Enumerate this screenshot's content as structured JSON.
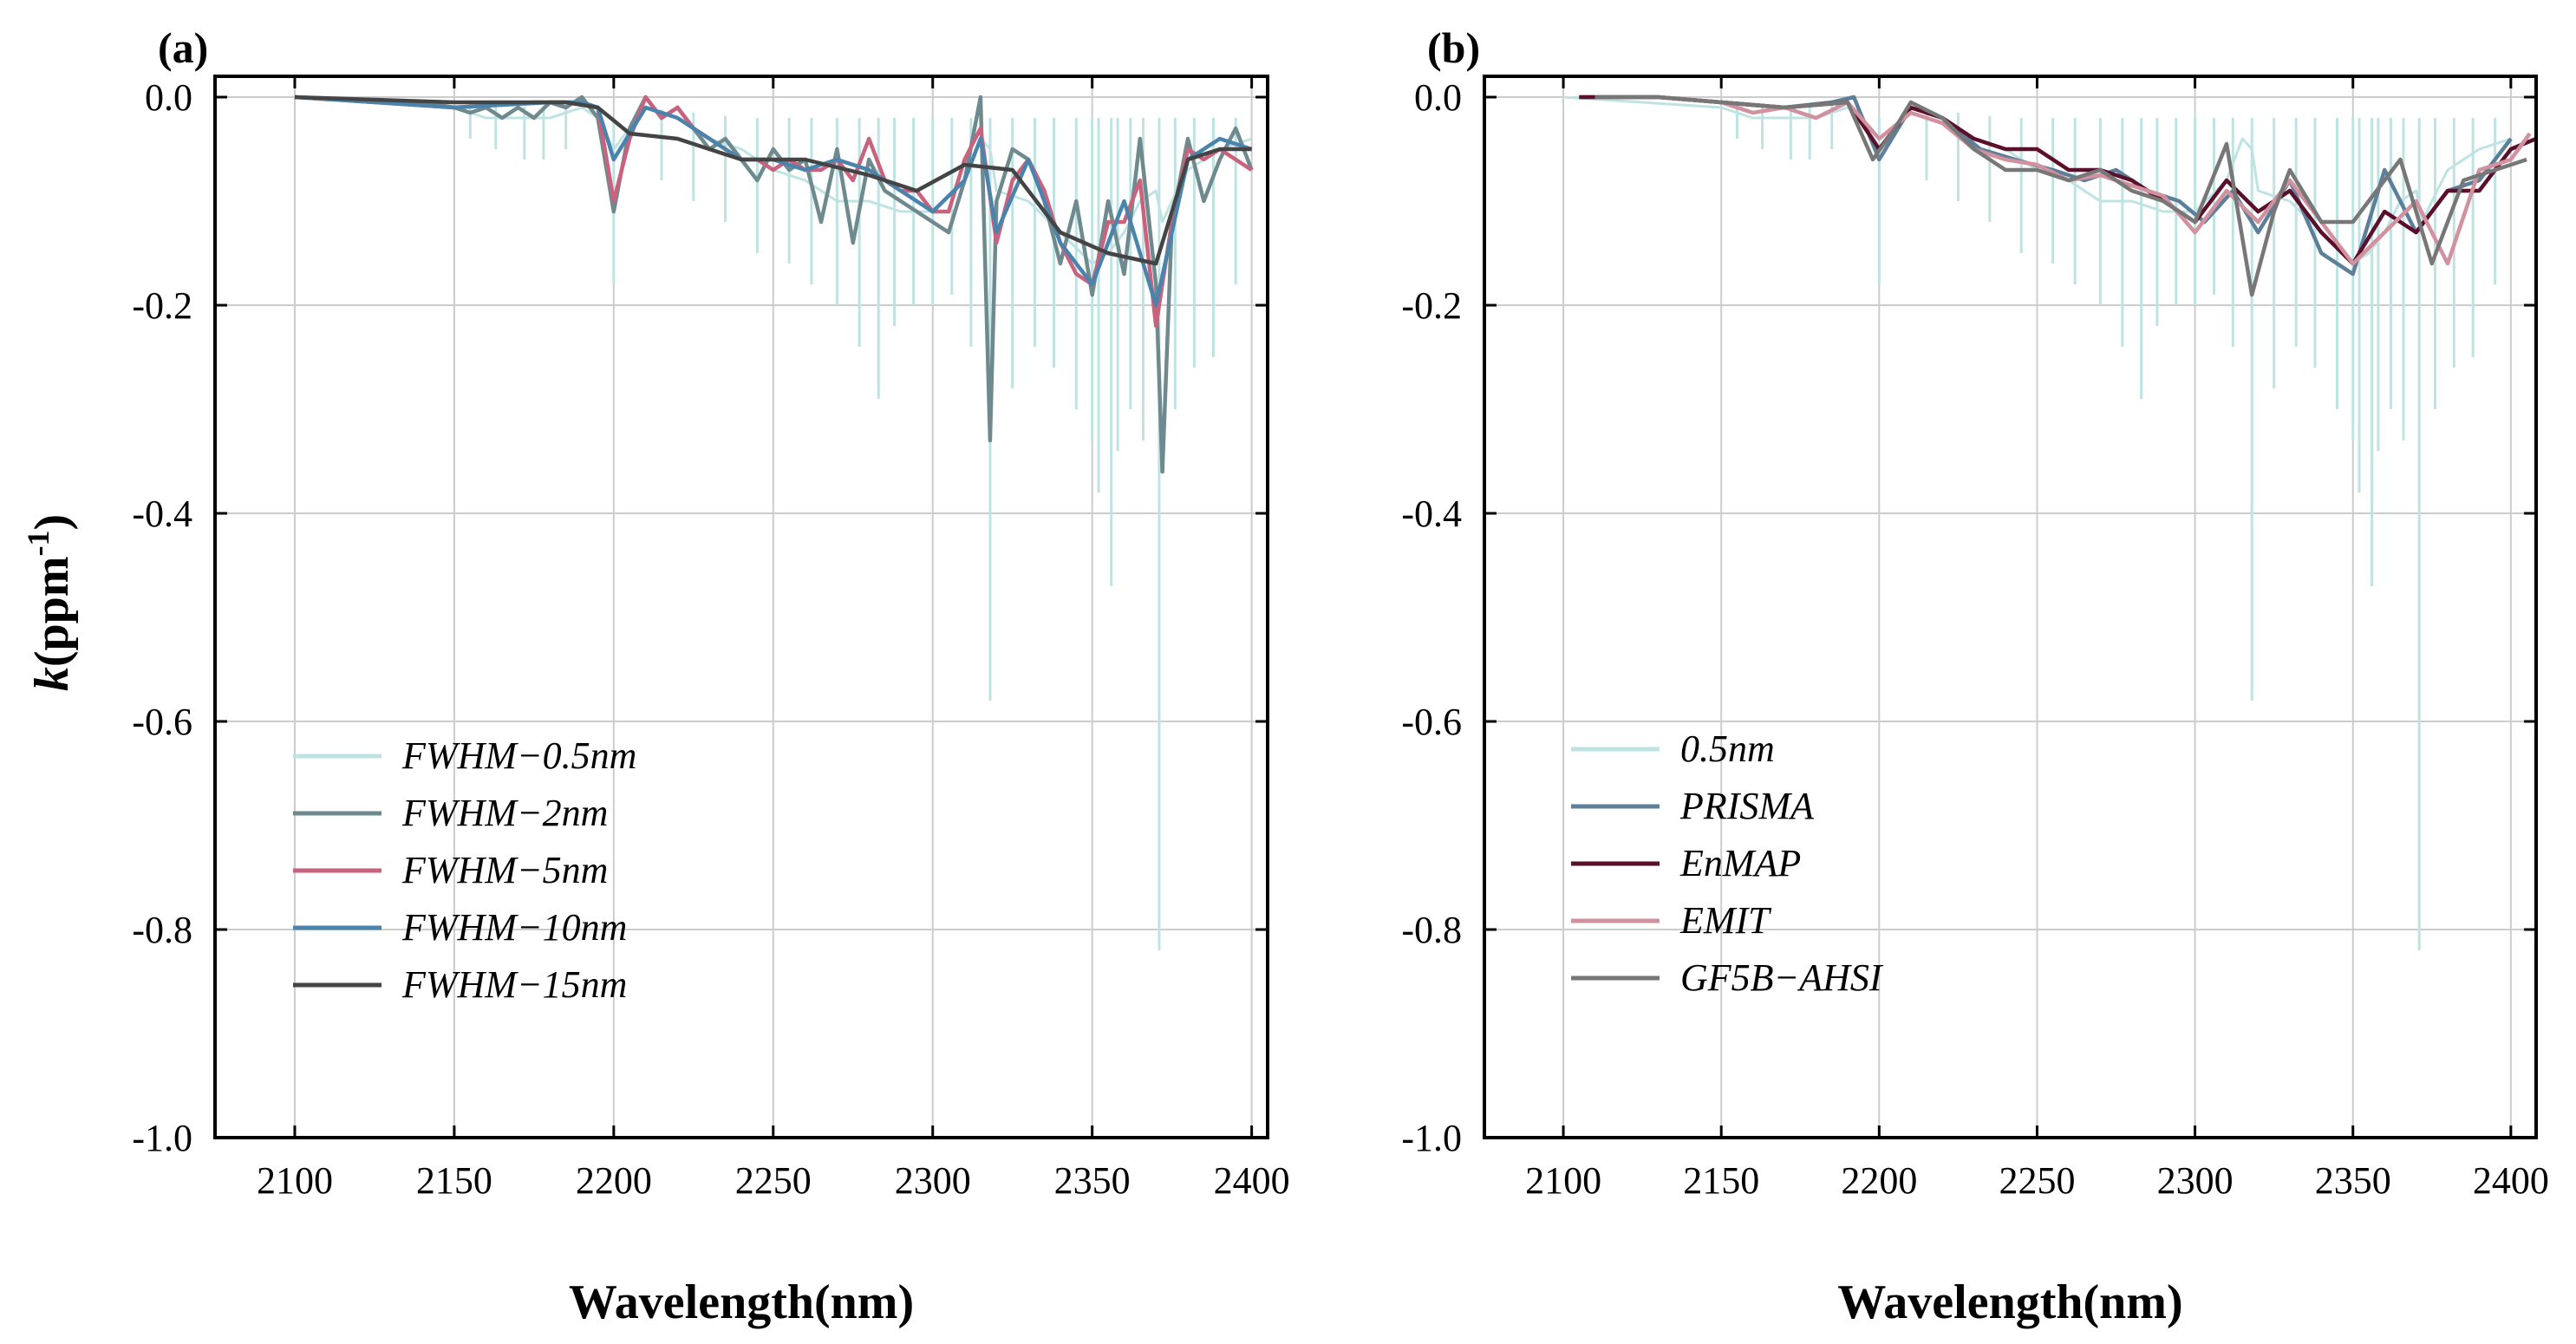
{
  "figure": {
    "ylabel_main": "k",
    "ylabel_unit": "(ppm",
    "ylabel_sup": "-1",
    "ylabel_close": ")"
  },
  "chart_data": [
    {
      "type": "line",
      "panel": "(a)",
      "xlabel": "Wavelength(nm)",
      "ylabel": "k(ppm-1)",
      "xlim": [
        2075,
        2405
      ],
      "ylim": [
        -1.0,
        0.02
      ],
      "xticks": [
        2100,
        2150,
        2200,
        2250,
        2300,
        2350,
        2400
      ],
      "yticks": [
        0.0,
        -0.2,
        -0.4,
        -0.6,
        -0.8,
        -1.0
      ],
      "ytick_labels": [
        "0.0",
        "-0.2",
        "-0.4",
        "-0.6",
        "-0.8",
        "-1.0"
      ],
      "grid": true,
      "legend_position": "lower-left",
      "legend": [
        "FWHM−0.5nm",
        "FWHM−2nm",
        "FWHM−5nm",
        "FWHM−10nm",
        "FWHM−15nm"
      ],
      "series": [
        {
          "name": "FWHM−0.5nm",
          "color": "#bfe3e3",
          "style": "spiky",
          "x": [
            2100,
            2150,
            2160,
            2170,
            2180,
            2190,
            2195,
            2200,
            2205,
            2210,
            2220,
            2230,
            2240,
            2250,
            2260,
            2270,
            2280,
            2290,
            2300,
            2310,
            2315,
            2318,
            2320,
            2330,
            2340,
            2350,
            2355,
            2360,
            2365,
            2370,
            2372,
            2375,
            2380,
            2390,
            2400
          ],
          "y": [
            0.0,
            -0.01,
            -0.02,
            -0.02,
            -0.02,
            -0.01,
            -0.02,
            -0.05,
            -0.03,
            -0.01,
            -0.02,
            -0.04,
            -0.05,
            -0.07,
            -0.08,
            -0.1,
            -0.1,
            -0.11,
            -0.11,
            -0.08,
            -0.04,
            -0.05,
            -0.09,
            -0.1,
            -0.13,
            -0.16,
            -0.15,
            -0.13,
            -0.1,
            -0.09,
            -0.12,
            -0.1,
            -0.07,
            -0.05,
            -0.04
          ],
          "spike_x": [
            2155,
            2163,
            2172,
            2178,
            2185,
            2200,
            2215,
            2225,
            2235,
            2245,
            2255,
            2262,
            2270,
            2277,
            2283,
            2288,
            2294,
            2300,
            2306,
            2312,
            2318,
            2325,
            2332,
            2338,
            2345,
            2350,
            2352,
            2356,
            2358,
            2362,
            2366,
            2371,
            2376,
            2382,
            2388,
            2395
          ],
          "spike_y": [
            -0.04,
            -0.05,
            -0.06,
            -0.06,
            -0.05,
            -0.18,
            -0.08,
            -0.1,
            -0.12,
            -0.15,
            -0.16,
            -0.18,
            -0.2,
            -0.24,
            -0.29,
            -0.22,
            -0.2,
            -0.2,
            -0.19,
            -0.24,
            -0.58,
            -0.28,
            -0.24,
            -0.26,
            -0.3,
            -0.33,
            -0.38,
            -0.47,
            -0.34,
            -0.3,
            -0.33,
            -0.82,
            -0.3,
            -0.26,
            -0.25,
            -0.18
          ]
        },
        {
          "name": "FWHM−2nm",
          "color": "#6f8a8e",
          "style": "line",
          "x": [
            2100,
            2140,
            2150,
            2155,
            2160,
            2165,
            2170,
            2175,
            2180,
            2185,
            2190,
            2195,
            2200,
            2205,
            2210,
            2215,
            2220,
            2225,
            2230,
            2235,
            2240,
            2245,
            2250,
            2255,
            2260,
            2265,
            2270,
            2275,
            2280,
            2285,
            2290,
            2295,
            2300,
            2305,
            2310,
            2315,
            2318,
            2320,
            2325,
            2330,
            2335,
            2340,
            2345,
            2350,
            2355,
            2360,
            2365,
            2370,
            2372,
            2375,
            2380,
            2385,
            2390,
            2395,
            2400
          ],
          "y": [
            0.0,
            -0.005,
            -0.01,
            -0.015,
            -0.01,
            -0.02,
            -0.01,
            -0.02,
            -0.005,
            -0.01,
            0.0,
            -0.02,
            -0.11,
            -0.03,
            0.0,
            -0.02,
            -0.01,
            -0.03,
            -0.05,
            -0.04,
            -0.06,
            -0.08,
            -0.05,
            -0.07,
            -0.06,
            -0.12,
            -0.05,
            -0.14,
            -0.06,
            -0.09,
            -0.1,
            -0.11,
            -0.12,
            -0.13,
            -0.08,
            0.0,
            -0.33,
            -0.1,
            -0.05,
            -0.06,
            -0.1,
            -0.16,
            -0.1,
            -0.19,
            -0.1,
            -0.17,
            -0.04,
            -0.18,
            -0.36,
            -0.12,
            -0.04,
            -0.1,
            -0.06,
            -0.03,
            -0.07
          ]
        },
        {
          "name": "FWHM−5nm",
          "color": "#c9627c",
          "style": "line",
          "x": [
            2100,
            2150,
            2175,
            2190,
            2195,
            2200,
            2205,
            2210,
            2215,
            2220,
            2225,
            2230,
            2235,
            2240,
            2245,
            2250,
            2255,
            2260,
            2265,
            2270,
            2275,
            2280,
            2285,
            2290,
            2295,
            2300,
            2305,
            2310,
            2315,
            2320,
            2325,
            2330,
            2335,
            2340,
            2345,
            2350,
            2355,
            2360,
            2365,
            2370,
            2375,
            2380,
            2385,
            2390,
            2395,
            2400
          ],
          "y": [
            0.0,
            -0.01,
            -0.005,
            -0.005,
            -0.01,
            -0.1,
            -0.04,
            0.0,
            -0.02,
            -0.01,
            -0.03,
            -0.04,
            -0.05,
            -0.06,
            -0.06,
            -0.07,
            -0.06,
            -0.07,
            -0.07,
            -0.06,
            -0.08,
            -0.04,
            -0.08,
            -0.09,
            -0.09,
            -0.11,
            -0.11,
            -0.06,
            -0.03,
            -0.14,
            -0.08,
            -0.06,
            -0.09,
            -0.14,
            -0.17,
            -0.18,
            -0.12,
            -0.12,
            -0.08,
            -0.22,
            -0.12,
            -0.05,
            -0.06,
            -0.05,
            -0.06,
            -0.07
          ]
        },
        {
          "name": "FWHM−10nm",
          "color": "#4a84ad",
          "style": "line",
          "x": [
            2100,
            2150,
            2180,
            2190,
            2195,
            2200,
            2210,
            2220,
            2230,
            2240,
            2250,
            2260,
            2270,
            2280,
            2290,
            2300,
            2310,
            2315,
            2320,
            2330,
            2340,
            2350,
            2360,
            2370,
            2380,
            2390,
            2400
          ],
          "y": [
            0.0,
            -0.01,
            -0.005,
            -0.005,
            -0.01,
            -0.06,
            -0.01,
            -0.02,
            -0.04,
            -0.06,
            -0.06,
            -0.07,
            -0.06,
            -0.07,
            -0.09,
            -0.11,
            -0.08,
            -0.04,
            -0.13,
            -0.06,
            -0.14,
            -0.18,
            -0.1,
            -0.2,
            -0.06,
            -0.04,
            -0.05
          ]
        },
        {
          "name": "FWHM−15nm",
          "color": "#444444",
          "style": "line",
          "x": [
            2100,
            2150,
            2185,
            2195,
            2205,
            2220,
            2240,
            2260,
            2280,
            2295,
            2310,
            2325,
            2340,
            2355,
            2370,
            2380,
            2390,
            2400
          ],
          "y": [
            0.0,
            -0.005,
            -0.005,
            -0.01,
            -0.035,
            -0.04,
            -0.06,
            -0.06,
            -0.075,
            -0.09,
            -0.065,
            -0.07,
            -0.13,
            -0.15,
            -0.16,
            -0.06,
            -0.05,
            -0.05
          ]
        }
      ]
    },
    {
      "type": "line",
      "panel": "(b)",
      "xlabel": "Wavelength(nm)",
      "ylabel": "",
      "xlim": [
        2075,
        2408
      ],
      "ylim": [
        -1.0,
        0.02
      ],
      "xticks": [
        2100,
        2150,
        2200,
        2250,
        2300,
        2350,
        2400
      ],
      "yticks": [
        0.0,
        -0.2,
        -0.4,
        -0.6,
        -0.8,
        -1.0
      ],
      "ytick_labels": [
        "0.0",
        "-0.2",
        "-0.4",
        "-0.6",
        "-0.8",
        "-1.0"
      ],
      "grid": true,
      "legend_position": "lower-left",
      "legend": [
        "0.5nm",
        "PRISMA",
        "EnMAP",
        "EMIT",
        "GF5B−AHSI"
      ],
      "series": [
        {
          "name": "0.5nm",
          "color": "#bfe3e3",
          "style": "spiky",
          "x": [
            2100,
            2150,
            2160,
            2170,
            2180,
            2190,
            2195,
            2200,
            2205,
            2210,
            2220,
            2230,
            2240,
            2250,
            2260,
            2270,
            2280,
            2290,
            2300,
            2310,
            2315,
            2318,
            2320,
            2330,
            2340,
            2350,
            2355,
            2360,
            2365,
            2370,
            2372,
            2375,
            2380,
            2390,
            2400
          ],
          "y": [
            0.0,
            -0.01,
            -0.02,
            -0.02,
            -0.02,
            -0.01,
            -0.02,
            -0.05,
            -0.03,
            -0.01,
            -0.02,
            -0.04,
            -0.05,
            -0.07,
            -0.08,
            -0.1,
            -0.1,
            -0.11,
            -0.11,
            -0.08,
            -0.04,
            -0.05,
            -0.09,
            -0.1,
            -0.13,
            -0.16,
            -0.15,
            -0.13,
            -0.1,
            -0.09,
            -0.12,
            -0.1,
            -0.07,
            -0.05,
            -0.04
          ],
          "spike_x": [
            2155,
            2163,
            2172,
            2178,
            2185,
            2200,
            2215,
            2225,
            2235,
            2245,
            2255,
            2262,
            2270,
            2277,
            2283,
            2288,
            2294,
            2300,
            2306,
            2312,
            2318,
            2325,
            2332,
            2338,
            2345,
            2350,
            2352,
            2356,
            2358,
            2362,
            2366,
            2371,
            2376,
            2382,
            2388,
            2395
          ],
          "spike_y": [
            -0.04,
            -0.05,
            -0.06,
            -0.06,
            -0.05,
            -0.18,
            -0.08,
            -0.1,
            -0.12,
            -0.15,
            -0.16,
            -0.18,
            -0.2,
            -0.24,
            -0.29,
            -0.22,
            -0.2,
            -0.2,
            -0.19,
            -0.24,
            -0.58,
            -0.28,
            -0.24,
            -0.26,
            -0.3,
            -0.33,
            -0.38,
            -0.47,
            -0.34,
            -0.3,
            -0.33,
            -0.82,
            -0.3,
            -0.26,
            -0.25,
            -0.18
          ]
        },
        {
          "name": "PRISMA",
          "color": "#5e7f99",
          "style": "line",
          "x": [
            2105,
            2130,
            2150,
            2170,
            2185,
            2192,
            2200,
            2210,
            2220,
            2232,
            2243,
            2255,
            2265,
            2275,
            2285,
            2295,
            2303,
            2312,
            2320,
            2330,
            2340,
            2350,
            2360,
            2370,
            2380,
            2390,
            2400
          ],
          "y": [
            0.0,
            0.0,
            -0.005,
            -0.01,
            -0.005,
            0.0,
            -0.06,
            -0.01,
            -0.02,
            -0.05,
            -0.06,
            -0.07,
            -0.08,
            -0.07,
            -0.09,
            -0.1,
            -0.12,
            -0.09,
            -0.13,
            -0.08,
            -0.15,
            -0.17,
            -0.07,
            -0.13,
            -0.09,
            -0.08,
            -0.04
          ]
        },
        {
          "name": "EnMAP",
          "color": "#5a0f2b",
          "style": "line",
          "x": [
            2105,
            2130,
            2150,
            2170,
            2190,
            2200,
            2210,
            2220,
            2230,
            2240,
            2250,
            2260,
            2270,
            2280,
            2290,
            2300,
            2310,
            2320,
            2330,
            2340,
            2350,
            2360,
            2370,
            2380,
            2390,
            2400,
            2408
          ],
          "y": [
            0.0,
            0.0,
            -0.005,
            -0.01,
            -0.005,
            -0.05,
            -0.01,
            -0.02,
            -0.04,
            -0.05,
            -0.05,
            -0.07,
            -0.07,
            -0.08,
            -0.1,
            -0.12,
            -0.08,
            -0.11,
            -0.09,
            -0.13,
            -0.16,
            -0.11,
            -0.13,
            -0.09,
            -0.09,
            -0.05,
            -0.04
          ]
        },
        {
          "name": "EMIT",
          "color": "#d1919e",
          "style": "line",
          "x": [
            2110,
            2130,
            2150,
            2160,
            2170,
            2180,
            2190,
            2200,
            2210,
            2220,
            2230,
            2240,
            2250,
            2260,
            2270,
            2280,
            2290,
            2300,
            2310,
            2320,
            2330,
            2340,
            2350,
            2360,
            2370,
            2380,
            2390,
            2400,
            2406
          ],
          "y": [
            0.0,
            0.0,
            -0.005,
            -0.015,
            -0.01,
            -0.02,
            -0.005,
            -0.04,
            -0.015,
            -0.025,
            -0.05,
            -0.06,
            -0.065,
            -0.08,
            -0.075,
            -0.085,
            -0.095,
            -0.13,
            -0.09,
            -0.12,
            -0.08,
            -0.12,
            -0.16,
            -0.13,
            -0.1,
            -0.16,
            -0.07,
            -0.06,
            -0.035
          ]
        },
        {
          "name": "GF5B−AHSI",
          "color": "#777777",
          "style": "line",
          "x": [
            2110,
            2130,
            2150,
            2170,
            2190,
            2198,
            2205,
            2210,
            2220,
            2230,
            2240,
            2250,
            2260,
            2270,
            2280,
            2290,
            2300,
            2310,
            2318,
            2325,
            2330,
            2340,
            2350,
            2355,
            2365,
            2375,
            2385,
            2395,
            2405
          ],
          "y": [
            0.0,
            0.0,
            -0.005,
            -0.01,
            -0.005,
            -0.06,
            -0.03,
            -0.005,
            -0.02,
            -0.05,
            -0.07,
            -0.07,
            -0.08,
            -0.07,
            -0.09,
            -0.1,
            -0.12,
            -0.045,
            -0.19,
            -0.11,
            -0.07,
            -0.12,
            -0.12,
            -0.1,
            -0.06,
            -0.16,
            -0.08,
            -0.07,
            -0.06
          ]
        }
      ]
    }
  ]
}
